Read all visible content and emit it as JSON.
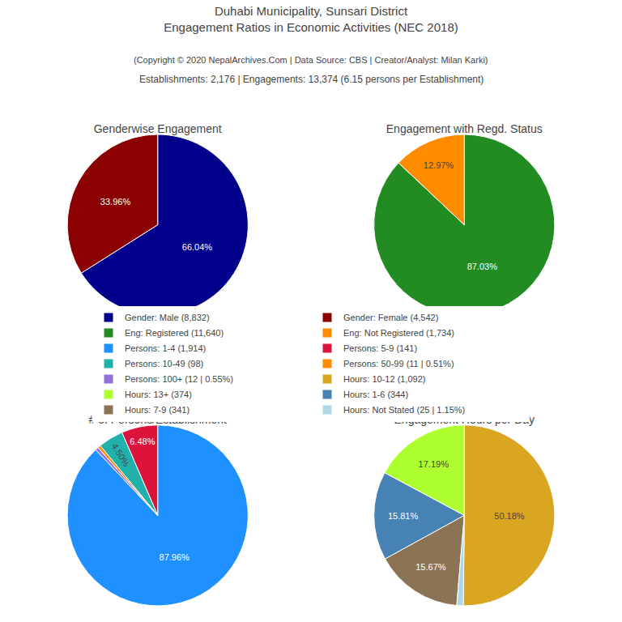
{
  "title": "Duhabi Municipality, Sunsari District",
  "subtitle": "Engagement Ratios in Economic Activities (NEC 2018)",
  "annotations": [
    "(Copyright © 2020 NepalArchives.Com | Data Source: CBS | Creator/Analyst: Milan Karki)",
    "Establishments: 2,176 | Engagements: 13,374 (6.15 persons per Establishment)"
  ],
  "chart_data": [
    {
      "type": "pie",
      "title": "Genderwise Engagement",
      "categories": [
        "Gender: Male (8,832)",
        "Gender: Female (4,542)"
      ],
      "values": [
        66.04,
        33.96
      ],
      "colors": [
        "#00008B",
        "#8B0000"
      ],
      "value_labels": [
        "66.04%",
        "33.96%"
      ]
    },
    {
      "type": "pie",
      "title": "Engagement with Regd. Status",
      "categories": [
        "Eng: Registered (11,640)",
        "Eng: Not Registered (1,734)"
      ],
      "values": [
        87.03,
        12.97
      ],
      "colors": [
        "#228B22",
        "#FF8C00"
      ],
      "value_labels": [
        "87.03%",
        "12.97%"
      ]
    },
    {
      "type": "pie",
      "title": "# of Persons/Establishment",
      "categories": [
        "Persons: 1-4 (1,914)",
        "Persons: 5-9 (141)",
        "Persons: 10-49 (98)",
        "Persons: 50-99 (11 | 0.51%)",
        "Persons: 100+ (12 | 0.55%)"
      ],
      "values": [
        87.96,
        6.48,
        4.5,
        0.51,
        0.55
      ],
      "colors": [
        "#1E90FF",
        "#DC143C",
        "#20B2AA",
        "#FF8C00",
        "#9370DB"
      ],
      "value_labels": [
        "87.96%",
        "6.48%",
        "4.50%",
        null,
        null
      ]
    },
    {
      "type": "pie",
      "title": "Engagement Hours per Day",
      "categories": [
        "Hours: 10-12 (1,092)",
        "Hours: 13+ (374)",
        "Hours: 1-6 (344)",
        "Hours: 7-9 (341)",
        "Hours: Not Stated (25 | 1.15%)"
      ],
      "values": [
        50.18,
        17.19,
        15.81,
        15.67,
        1.15
      ],
      "colors": [
        "#DAA520",
        "#ADFF2F",
        "#4682B4",
        "#8B7355",
        "#ADD8E6"
      ],
      "value_labels": [
        "50.18%",
        "17.19%",
        "15.81%",
        "15.67%",
        null
      ]
    }
  ]
}
